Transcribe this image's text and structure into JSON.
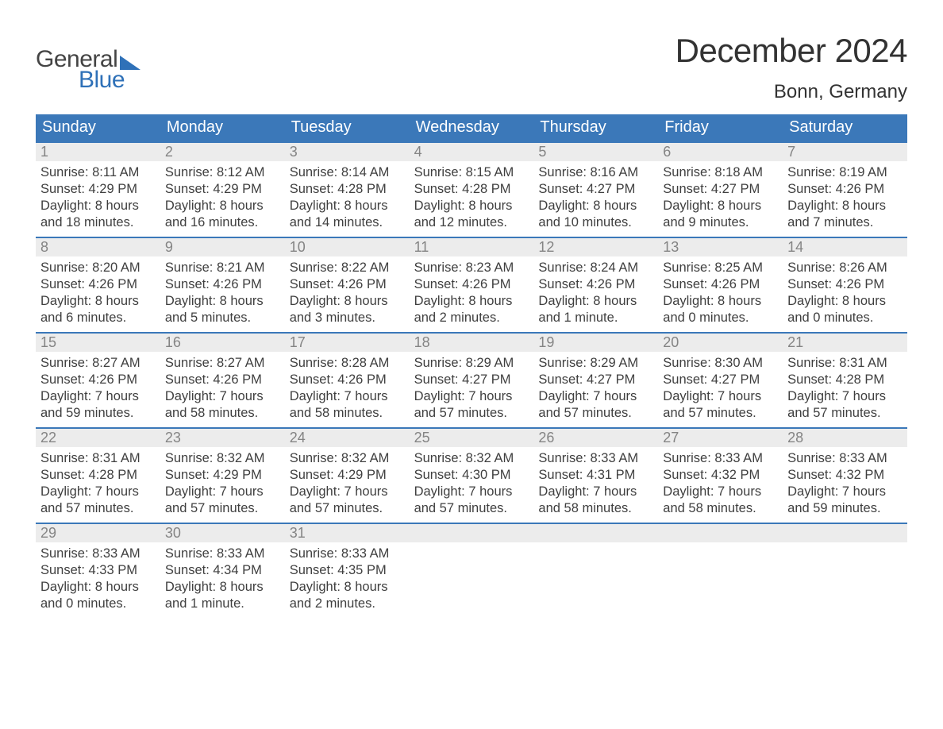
{
  "logo": {
    "general": "General",
    "blue": "Blue"
  },
  "title": "December 2024",
  "subtitle": "Bonn, Germany",
  "colors": {
    "header_bg": "#3b78b9",
    "header_text": "#ffffff",
    "daynum_bg": "#ececec",
    "daynum_text": "#848484",
    "body_text": "#3f3f3f",
    "week_border": "#3b78b9",
    "page_bg": "#ffffff",
    "logo_blue": "#2f71b8",
    "logo_gray": "#444444"
  },
  "typography": {
    "title_fontsize": 42,
    "subtitle_fontsize": 24,
    "weekday_fontsize": 20,
    "daynum_fontsize": 18,
    "body_fontsize": 16.5,
    "logo_fontsize": 30,
    "font_family": "Arial, Helvetica, sans-serif"
  },
  "layout": {
    "columns": 7,
    "aspect_ratio": "1188x918",
    "week_border_width": 2
  },
  "weekdays": [
    "Sunday",
    "Monday",
    "Tuesday",
    "Wednesday",
    "Thursday",
    "Friday",
    "Saturday"
  ],
  "weeks": [
    [
      {
        "day": "1",
        "sunrise": "Sunrise: 8:11 AM",
        "sunset": "Sunset: 4:29 PM",
        "dl1": "Daylight: 8 hours",
        "dl2": "and 18 minutes."
      },
      {
        "day": "2",
        "sunrise": "Sunrise: 8:12 AM",
        "sunset": "Sunset: 4:29 PM",
        "dl1": "Daylight: 8 hours",
        "dl2": "and 16 minutes."
      },
      {
        "day": "3",
        "sunrise": "Sunrise: 8:14 AM",
        "sunset": "Sunset: 4:28 PM",
        "dl1": "Daylight: 8 hours",
        "dl2": "and 14 minutes."
      },
      {
        "day": "4",
        "sunrise": "Sunrise: 8:15 AM",
        "sunset": "Sunset: 4:28 PM",
        "dl1": "Daylight: 8 hours",
        "dl2": "and 12 minutes."
      },
      {
        "day": "5",
        "sunrise": "Sunrise: 8:16 AM",
        "sunset": "Sunset: 4:27 PM",
        "dl1": "Daylight: 8 hours",
        "dl2": "and 10 minutes."
      },
      {
        "day": "6",
        "sunrise": "Sunrise: 8:18 AM",
        "sunset": "Sunset: 4:27 PM",
        "dl1": "Daylight: 8 hours",
        "dl2": "and 9 minutes."
      },
      {
        "day": "7",
        "sunrise": "Sunrise: 8:19 AM",
        "sunset": "Sunset: 4:26 PM",
        "dl1": "Daylight: 8 hours",
        "dl2": "and 7 minutes."
      }
    ],
    [
      {
        "day": "8",
        "sunrise": "Sunrise: 8:20 AM",
        "sunset": "Sunset: 4:26 PM",
        "dl1": "Daylight: 8 hours",
        "dl2": "and 6 minutes."
      },
      {
        "day": "9",
        "sunrise": "Sunrise: 8:21 AM",
        "sunset": "Sunset: 4:26 PM",
        "dl1": "Daylight: 8 hours",
        "dl2": "and 5 minutes."
      },
      {
        "day": "10",
        "sunrise": "Sunrise: 8:22 AM",
        "sunset": "Sunset: 4:26 PM",
        "dl1": "Daylight: 8 hours",
        "dl2": "and 3 minutes."
      },
      {
        "day": "11",
        "sunrise": "Sunrise: 8:23 AM",
        "sunset": "Sunset: 4:26 PM",
        "dl1": "Daylight: 8 hours",
        "dl2": "and 2 minutes."
      },
      {
        "day": "12",
        "sunrise": "Sunrise: 8:24 AM",
        "sunset": "Sunset: 4:26 PM",
        "dl1": "Daylight: 8 hours",
        "dl2": "and 1 minute."
      },
      {
        "day": "13",
        "sunrise": "Sunrise: 8:25 AM",
        "sunset": "Sunset: 4:26 PM",
        "dl1": "Daylight: 8 hours",
        "dl2": "and 0 minutes."
      },
      {
        "day": "14",
        "sunrise": "Sunrise: 8:26 AM",
        "sunset": "Sunset: 4:26 PM",
        "dl1": "Daylight: 8 hours",
        "dl2": "and 0 minutes."
      }
    ],
    [
      {
        "day": "15",
        "sunrise": "Sunrise: 8:27 AM",
        "sunset": "Sunset: 4:26 PM",
        "dl1": "Daylight: 7 hours",
        "dl2": "and 59 minutes."
      },
      {
        "day": "16",
        "sunrise": "Sunrise: 8:27 AM",
        "sunset": "Sunset: 4:26 PM",
        "dl1": "Daylight: 7 hours",
        "dl2": "and 58 minutes."
      },
      {
        "day": "17",
        "sunrise": "Sunrise: 8:28 AM",
        "sunset": "Sunset: 4:26 PM",
        "dl1": "Daylight: 7 hours",
        "dl2": "and 58 minutes."
      },
      {
        "day": "18",
        "sunrise": "Sunrise: 8:29 AM",
        "sunset": "Sunset: 4:27 PM",
        "dl1": "Daylight: 7 hours",
        "dl2": "and 57 minutes."
      },
      {
        "day": "19",
        "sunrise": "Sunrise: 8:29 AM",
        "sunset": "Sunset: 4:27 PM",
        "dl1": "Daylight: 7 hours",
        "dl2": "and 57 minutes."
      },
      {
        "day": "20",
        "sunrise": "Sunrise: 8:30 AM",
        "sunset": "Sunset: 4:27 PM",
        "dl1": "Daylight: 7 hours",
        "dl2": "and 57 minutes."
      },
      {
        "day": "21",
        "sunrise": "Sunrise: 8:31 AM",
        "sunset": "Sunset: 4:28 PM",
        "dl1": "Daylight: 7 hours",
        "dl2": "and 57 minutes."
      }
    ],
    [
      {
        "day": "22",
        "sunrise": "Sunrise: 8:31 AM",
        "sunset": "Sunset: 4:28 PM",
        "dl1": "Daylight: 7 hours",
        "dl2": "and 57 minutes."
      },
      {
        "day": "23",
        "sunrise": "Sunrise: 8:32 AM",
        "sunset": "Sunset: 4:29 PM",
        "dl1": "Daylight: 7 hours",
        "dl2": "and 57 minutes."
      },
      {
        "day": "24",
        "sunrise": "Sunrise: 8:32 AM",
        "sunset": "Sunset: 4:29 PM",
        "dl1": "Daylight: 7 hours",
        "dl2": "and 57 minutes."
      },
      {
        "day": "25",
        "sunrise": "Sunrise: 8:32 AM",
        "sunset": "Sunset: 4:30 PM",
        "dl1": "Daylight: 7 hours",
        "dl2": "and 57 minutes."
      },
      {
        "day": "26",
        "sunrise": "Sunrise: 8:33 AM",
        "sunset": "Sunset: 4:31 PM",
        "dl1": "Daylight: 7 hours",
        "dl2": "and 58 minutes."
      },
      {
        "day": "27",
        "sunrise": "Sunrise: 8:33 AM",
        "sunset": "Sunset: 4:32 PM",
        "dl1": "Daylight: 7 hours",
        "dl2": "and 58 minutes."
      },
      {
        "day": "28",
        "sunrise": "Sunrise: 8:33 AM",
        "sunset": "Sunset: 4:32 PM",
        "dl1": "Daylight: 7 hours",
        "dl2": "and 59 minutes."
      }
    ],
    [
      {
        "day": "29",
        "sunrise": "Sunrise: 8:33 AM",
        "sunset": "Sunset: 4:33 PM",
        "dl1": "Daylight: 8 hours",
        "dl2": "and 0 minutes."
      },
      {
        "day": "30",
        "sunrise": "Sunrise: 8:33 AM",
        "sunset": "Sunset: 4:34 PM",
        "dl1": "Daylight: 8 hours",
        "dl2": "and 1 minute."
      },
      {
        "day": "31",
        "sunrise": "Sunrise: 8:33 AM",
        "sunset": "Sunset: 4:35 PM",
        "dl1": "Daylight: 8 hours",
        "dl2": "and 2 minutes."
      },
      {
        "empty": true
      },
      {
        "empty": true
      },
      {
        "empty": true
      },
      {
        "empty": true
      }
    ]
  ]
}
